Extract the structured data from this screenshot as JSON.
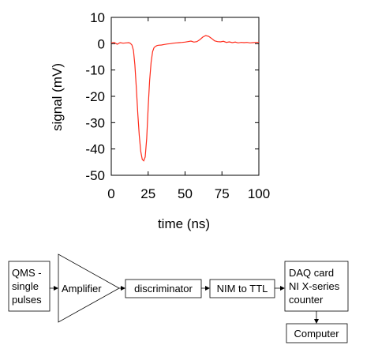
{
  "chart_data": {
    "type": "line",
    "xlabel": "time (ns)",
    "ylabel": "signal (mV)",
    "xlim": [
      0,
      100
    ],
    "ylim": [
      -50,
      10
    ],
    "xticks": [
      0,
      25,
      50,
      75,
      100
    ],
    "yticks": [
      10,
      0,
      -10,
      -20,
      -30,
      -40,
      -50
    ],
    "grid": false,
    "series": [
      {
        "color": "#ff2a1a",
        "x": [
          0,
          2,
          4,
          6,
          8,
          10,
          12,
          13,
          14,
          15,
          16,
          17,
          18,
          19,
          20,
          21,
          22,
          23,
          24,
          25,
          26,
          27,
          28,
          29,
          30,
          31,
          32,
          34,
          36,
          38,
          40,
          42,
          44,
          46,
          48,
          50,
          52,
          54,
          56,
          58,
          60,
          62,
          64,
          66,
          68,
          70,
          72,
          74,
          76,
          78,
          80,
          82,
          84,
          86,
          88,
          90,
          92,
          94,
          96,
          98,
          100
        ],
        "y": [
          0.3,
          0.5,
          -0.2,
          0.4,
          0.2,
          0.3,
          0.4,
          0.1,
          -0.5,
          -2.5,
          -8,
          -17,
          -27,
          -35,
          -41,
          -44,
          -44.5,
          -43,
          -36,
          -24,
          -14,
          -7,
          -3,
          -1.5,
          -1,
          -0.7,
          -0.6,
          -0.5,
          -0.3,
          -0.1,
          0.0,
          0.2,
          0.3,
          0.4,
          0.5,
          0.6,
          0.8,
          1.0,
          0.6,
          0.8,
          1.5,
          2.5,
          3.1,
          2.8,
          2.0,
          1.1,
          0.8,
          0.7,
          0.9,
          0.5,
          0.7,
          0.4,
          0.6,
          0.3,
          0.5,
          0.4,
          0.5,
          0.3,
          0.4,
          0.5,
          0.5
        ]
      }
    ]
  },
  "diagram": {
    "blocks": {
      "qms": [
        "QMS -",
        "single",
        "pulses"
      ],
      "amplifier": "Amplifier",
      "discriminator": "discriminator",
      "nim_ttl": "NIM to TTL",
      "daq": [
        "DAQ card",
        "NI X-series",
        "counter"
      ],
      "computer": "Computer"
    }
  }
}
